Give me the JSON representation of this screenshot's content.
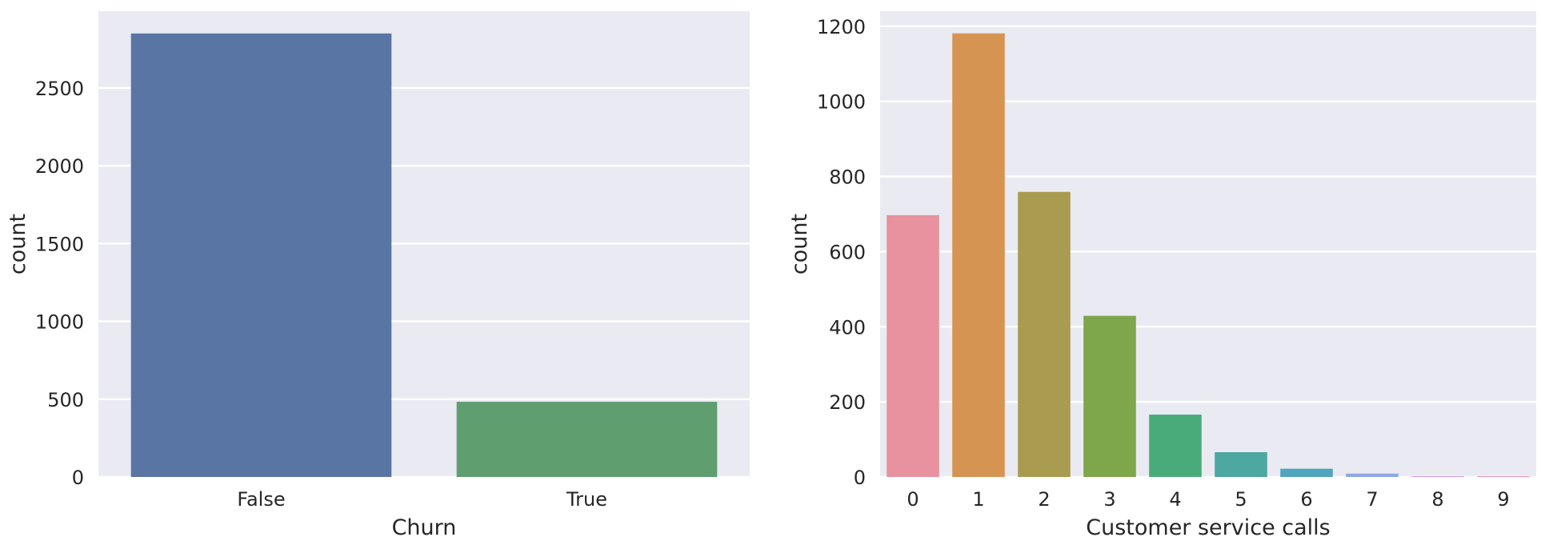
{
  "chart_data": [
    {
      "type": "bar",
      "categories": [
        "False",
        "True"
      ],
      "values": [
        2850,
        483
      ],
      "xlabel": "Churn",
      "ylabel": "count",
      "ylim": [
        0,
        2993
      ],
      "yticks": [
        0,
        500,
        1000,
        1500,
        2000,
        2500
      ],
      "grid": true,
      "colors": [
        "#5975a4",
        "#5f9e6e"
      ],
      "background": "#eaeaf2"
    },
    {
      "type": "bar",
      "categories": [
        "0",
        "1",
        "2",
        "3",
        "4",
        "5",
        "6",
        "7",
        "8",
        "9"
      ],
      "values": [
        697,
        1181,
        759,
        429,
        166,
        66,
        22,
        9,
        2,
        2
      ],
      "xlabel": "Customer service calls",
      "ylabel": "count",
      "ylim": [
        0,
        1240
      ],
      "yticks": [
        0,
        200,
        400,
        600,
        800,
        1000,
        1200
      ],
      "grid": true,
      "colors": [
        "#e8929f",
        "#d69453",
        "#a99b4f",
        "#7ea74c",
        "#4aab7a",
        "#4ca8a0",
        "#4fa6bd",
        "#8ea8e6",
        "#d691e3",
        "#ea8cc4"
      ],
      "background": "#eaeaf2"
    }
  ]
}
